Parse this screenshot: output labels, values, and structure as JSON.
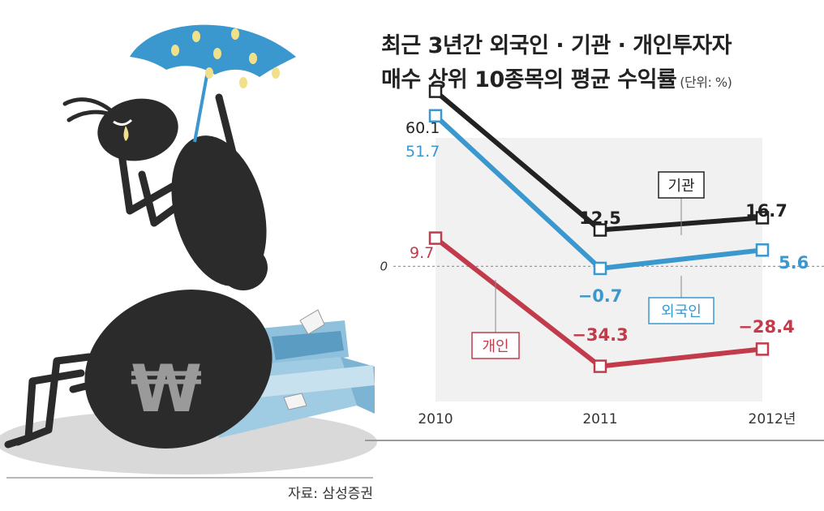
{
  "chart_data": {
    "type": "line",
    "title": "최근 3년간 외국인 · 기관 · 개인투자자",
    "subtitle": "매수 상위 10종목의 평균 수익률",
    "unit": "(단위: %)",
    "categories": [
      "2010",
      "2011",
      "2012년"
    ],
    "ylim": [
      -45,
      65
    ],
    "zero_label": "0",
    "series": [
      {
        "name": "기관",
        "color": "#222222",
        "values": [
          60.1,
          12.5,
          16.7
        ],
        "value_labels": [
          "60.1",
          "12.5",
          "16.7"
        ]
      },
      {
        "name": "외국인",
        "color": "#3a98cf",
        "values": [
          51.7,
          -0.7,
          5.6
        ],
        "value_labels": [
          "51.7",
          "−0.7",
          "5.6"
        ]
      },
      {
        "name": "개인",
        "color": "#c23b4b",
        "values": [
          9.7,
          -34.3,
          -28.4
        ],
        "value_labels": [
          "9.7",
          "−34.3",
          "−28.4"
        ]
      }
    ],
    "grid": false,
    "source": "자료: 삼성증권"
  },
  "illustration": {
    "description_icon": "ant-with-umbrella-crying",
    "won_symbol": "₩"
  }
}
